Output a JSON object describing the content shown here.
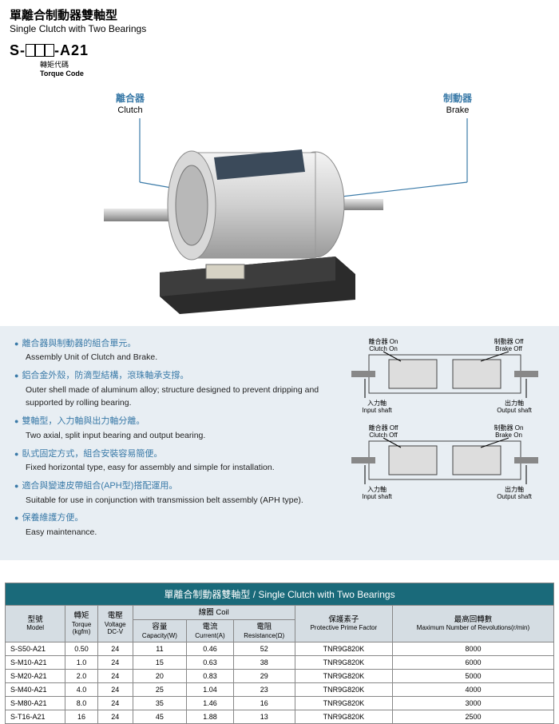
{
  "header": {
    "title_zh": "單離合制動器雙軸型",
    "title_en": "Single Clutch with Two Bearings"
  },
  "model": {
    "prefix": "S-",
    "suffix": "-A21",
    "torque_zh": "轉矩代碼",
    "torque_en": "Torque Code"
  },
  "labels": {
    "clutch_zh": "離合器",
    "clutch_en": "Clutch",
    "brake_zh": "制動器",
    "brake_en": "Brake"
  },
  "bullets": [
    {
      "zh": "離合器與制動器的組合單元。",
      "en": "Assembly Unit of Clutch and Brake."
    },
    {
      "zh": "鋁合金外殼，防滴型結構，滾珠軸承支撐。",
      "en": "Outer shell made of aluminum alloy; structure designed to prevent dripping and supported by rolling bearing."
    },
    {
      "zh": "雙軸型，入力軸與出力軸分離。",
      "en": "Two axial, split input bearing and output bearing."
    },
    {
      "zh": "臥式固定方式，組合安裝容易簡便。",
      "en": "Fixed horizontal type, easy for assembly and simple for installation."
    },
    {
      "zh": "適合與變速皮帶組合(APH型)搭配運用。",
      "en": "Suitable for use in conjunction with transmission belt assembly (APH type)."
    },
    {
      "zh": "保養維護方便。",
      "en": "Easy maintenance."
    }
  ],
  "diagram": {
    "state1": {
      "clutch_zh": "離合器 On",
      "clutch_en": "Clutch On",
      "brake_zh": "制動器 Off",
      "brake_en": "Brake Off",
      "in_zh": "入力軸",
      "in_en": "Input shaft",
      "out_zh": "出力軸",
      "out_en": "Output shaft"
    },
    "state2": {
      "clutch_zh": "離合器 Off",
      "clutch_en": "Clutch Off",
      "brake_zh": "制動器 On",
      "brake_en": "Brake On",
      "in_zh": "入力軸",
      "in_en": "Input shaft",
      "out_zh": "出力軸",
      "out_en": "Output shaft"
    }
  },
  "table": {
    "title": "單離合制動器雙軸型 / Single Clutch with Two Bearings",
    "headers": {
      "model_zh": "型號",
      "model_en": "Model",
      "torque_zh": "轉矩",
      "torque_en": "Torque",
      "torque_unit": "(kgfm)",
      "voltage_zh": "電壓",
      "voltage_en": "Voltage",
      "voltage_unit": "DC-V",
      "coil_zh": "線圈 Coil",
      "capacity_zh": "容量",
      "capacity_en": "Capacity(W)",
      "current_zh": "電流",
      "current_en": "Current(A)",
      "resist_zh": "電阻",
      "resist_en": "Resistance(Ω)",
      "ppf_zh": "保護素子",
      "ppf_en": "Protective Prime Factor",
      "rpm_zh": "最高回轉數",
      "rpm_en": "Maximum Number of Revolutions(r/min)"
    },
    "rows": [
      {
        "model": "S-S50-A21",
        "torque": "0.50",
        "voltage": "24",
        "capacity": "11",
        "current": "0.46",
        "resist": "52",
        "ppf": "TNR9G820K",
        "rpm": "8000"
      },
      {
        "model": "S-M10-A21",
        "torque": "1.0",
        "voltage": "24",
        "capacity": "15",
        "current": "0.63",
        "resist": "38",
        "ppf": "TNR9G820K",
        "rpm": "6000"
      },
      {
        "model": "S-M20-A21",
        "torque": "2.0",
        "voltage": "24",
        "capacity": "20",
        "current": "0.83",
        "resist": "29",
        "ppf": "TNR9G820K",
        "rpm": "5000"
      },
      {
        "model": "S-M40-A21",
        "torque": "4.0",
        "voltage": "24",
        "capacity": "25",
        "current": "1.04",
        "resist": "23",
        "ppf": "TNR9G820K",
        "rpm": "4000"
      },
      {
        "model": "S-M80-A21",
        "torque": "8.0",
        "voltage": "24",
        "capacity": "35",
        "current": "1.46",
        "resist": "16",
        "ppf": "TNR9G820K",
        "rpm": "3000"
      },
      {
        "model": "S-T16-A21",
        "torque": "16",
        "voltage": "24",
        "capacity": "45",
        "current": "1.88",
        "resist": "13",
        "ppf": "TNR9G820K",
        "rpm": "2500"
      }
    ]
  },
  "colors": {
    "accent": "#3a7aa8",
    "band_bg": "#e8eef3",
    "table_title_bg": "#1a6a7a",
    "table_head_bg": "#d5dde3"
  }
}
